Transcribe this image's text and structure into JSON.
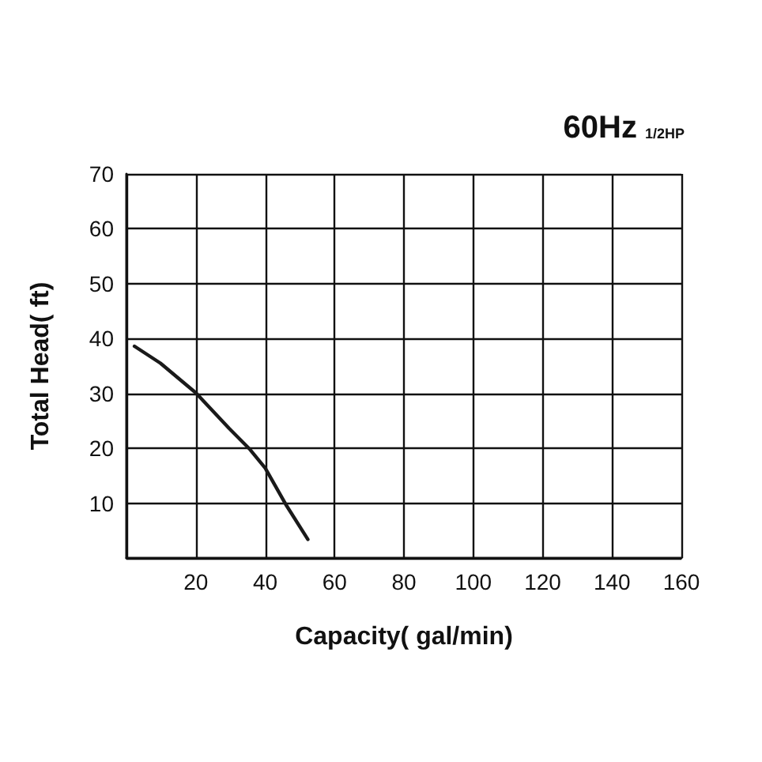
{
  "chart_data": {
    "type": "line",
    "title": "60Hz",
    "subtitle": "1/2HP",
    "xlabel": "Capacity( gal/min)",
    "ylabel": "Total Head( ft)",
    "series": [
      {
        "color": "#1a1a1a",
        "x": [
          2.3,
          9.8,
          20,
          29.5,
          35.6,
          40,
          46.2,
          52.3
        ],
        "values": [
          38.6,
          35.5,
          30.1,
          23.7,
          19.8,
          16.4,
          9.5,
          3.4
        ]
      }
    ],
    "xlim": [
      0,
      160
    ],
    "xticks": [
      {
        "value": 0,
        "label": null
      },
      20,
      40,
      60,
      80,
      100,
      120,
      140,
      160
    ],
    "ylim": [
      0,
      70
    ],
    "yticks": [
      {
        "value": 0,
        "label": null
      },
      10,
      20,
      30,
      40,
      50,
      60,
      70
    ],
    "grid": true,
    "marker": "none",
    "line_style": "solid"
  }
}
